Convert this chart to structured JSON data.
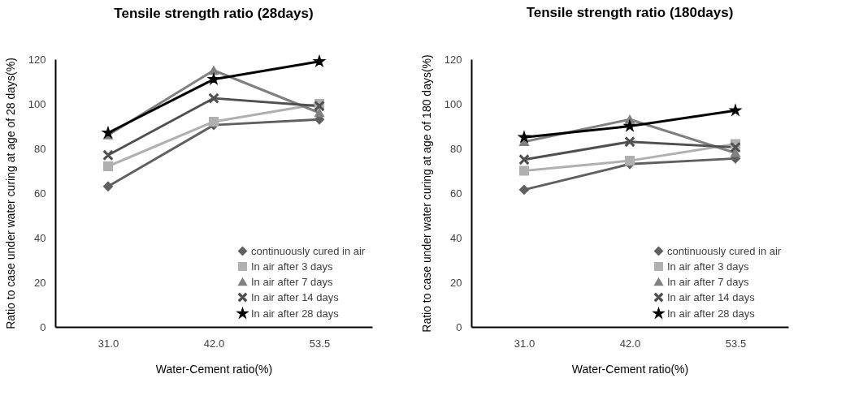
{
  "chart_data": [
    {
      "type": "line",
      "title": "Tensile strength ratio (28days)",
      "xlabel": "Water-Cement ratio(%)",
      "ylabel": "Ratio to case under water curing at age of  28 days(%)",
      "categories": [
        "31.0",
        "42.0",
        "53.5"
      ],
      "ylim": [
        0,
        120
      ],
      "yticks": [
        0,
        20,
        40,
        60,
        80,
        100,
        120
      ],
      "legend": "bottom right",
      "series": [
        {
          "name": "continuously cured in air",
          "color": "#606060",
          "marker": "diamond",
          "values": [
            63,
            90.5,
            93
          ]
        },
        {
          "name": "In air after 3 days",
          "color": "#b0b0b0",
          "marker": "square",
          "values": [
            72,
            92,
            100
          ]
        },
        {
          "name": "In air after 7 days",
          "color": "#808080",
          "marker": "triangle",
          "values": [
            86,
            115,
            96
          ]
        },
        {
          "name": "In air after 14 days",
          "color": "#505050",
          "marker": "cross",
          "values": [
            77,
            102.5,
            99
          ]
        },
        {
          "name": "In air after 28 days",
          "color": "#000000",
          "marker": "star",
          "values": [
            87,
            111,
            119
          ]
        }
      ]
    },
    {
      "type": "line",
      "title": "Tensile strength ratio (180days)",
      "xlabel": "Water-Cement ratio(%)",
      "ylabel": "Ratio to case under water curing at age of  180 days(%)",
      "categories": [
        "31.0",
        "42.0",
        "53.5"
      ],
      "ylim": [
        0,
        120
      ],
      "yticks": [
        0,
        20,
        40,
        60,
        80,
        100,
        120
      ],
      "legend": "bottom right",
      "series": [
        {
          "name": "continuously cured in air",
          "color": "#606060",
          "marker": "diamond",
          "values": [
            61.5,
            73,
            75.5
          ]
        },
        {
          "name": "In air after 3 days",
          "color": "#b0b0b0",
          "marker": "square",
          "values": [
            70,
            74.5,
            82
          ]
        },
        {
          "name": "In air after 7 days",
          "color": "#808080",
          "marker": "triangle",
          "values": [
            83,
            93,
            78
          ]
        },
        {
          "name": "In air after 14 days",
          "color": "#505050",
          "marker": "cross",
          "values": [
            75,
            83,
            80.5
          ]
        },
        {
          "name": "In air after 28 days",
          "color": "#000000",
          "marker": "star",
          "values": [
            85,
            90,
            97
          ]
        }
      ]
    }
  ]
}
